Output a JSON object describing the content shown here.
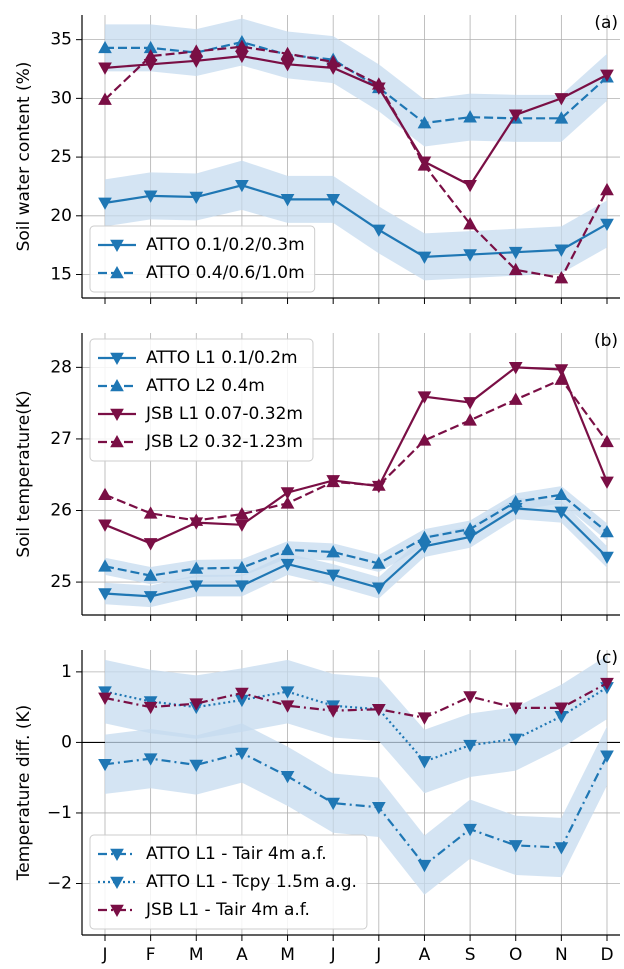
{
  "chart_data": [
    {
      "type": "line",
      "ylabel": "Soil water content (%)",
      "annotation": "(a)",
      "ylim": [
        13,
        37.1
      ],
      "yticks": [
        15,
        20,
        25,
        30,
        35
      ],
      "grid": true,
      "legend": "lower left",
      "band_color": "#c6dbef",
      "series": [
        {
          "name": "ATTO 0.1/0.2/0.3m",
          "color": "#1f77b4",
          "dash": "solid",
          "marker": "v",
          "values": [
            21.1,
            21.7,
            21.6,
            22.6,
            21.4,
            21.4,
            18.8,
            16.5,
            16.7,
            16.9,
            17.1,
            19.3
          ],
          "errors": [
            2,
            2,
            2,
            2.1,
            2,
            2,
            2,
            2,
            2,
            2,
            2,
            2
          ]
        },
        {
          "name": "ATTO 0.4/0.6/1.0m",
          "color": "#1f77b4",
          "dash": "dashed",
          "marker": "^",
          "values": [
            34.3,
            34.3,
            33.9,
            34.8,
            33.7,
            33.3,
            30.9,
            27.9,
            28.4,
            28.3,
            28.3,
            31.8
          ],
          "errors": [
            2,
            2,
            2,
            2,
            2,
            2,
            2,
            2,
            2,
            2,
            2,
            2
          ]
        },
        {
          "color": "#7a0f45",
          "dash": "solid",
          "marker": "v",
          "values": [
            32.6,
            32.9,
            33.2,
            33.6,
            32.9,
            32.6,
            30.9,
            24.6,
            22.6,
            28.6,
            30.0,
            32.0
          ]
        },
        {
          "color": "#7a0f45",
          "dash": "dashed",
          "marker": "^",
          "values": [
            29.9,
            33.6,
            34.0,
            34.4,
            33.8,
            33.1,
            31.2,
            24.3,
            19.3,
            15.4,
            14.7,
            22.2
          ]
        }
      ]
    },
    {
      "type": "line",
      "ylabel": "Soil temperature(K)",
      "annotation": "(b)",
      "ylim": [
        24.54,
        28.48
      ],
      "yticks": [
        25,
        26,
        27,
        28
      ],
      "grid": true,
      "legend": "upper left",
      "band_color": "#c6dbef",
      "series": [
        {
          "name": "ATTO L1 0.1/0.2m",
          "color": "#1f77b4",
          "dash": "solid",
          "marker": "v",
          "values": [
            24.84,
            24.8,
            24.95,
            24.95,
            25.25,
            25.1,
            24.92,
            25.5,
            25.63,
            26.03,
            25.98,
            25.35
          ],
          "errors": [
            0.15,
            0.15,
            0.15,
            0.15,
            0.15,
            0.15,
            0.15,
            0.15,
            0.15,
            0.15,
            0.15,
            0.15
          ]
        },
        {
          "name": "ATTO L2 0.4m",
          "color": "#1f77b4",
          "dash": "dashed",
          "marker": "^",
          "values": [
            25.22,
            25.09,
            25.19,
            25.2,
            25.45,
            25.42,
            25.26,
            25.62,
            25.74,
            26.12,
            26.22,
            25.7
          ],
          "errors": [
            0.12,
            0.12,
            0.12,
            0.12,
            0.12,
            0.12,
            0.12,
            0.12,
            0.12,
            0.12,
            0.12,
            0.12
          ]
        },
        {
          "name": "JSB L1 0.07-0.32m",
          "color": "#7a0f45",
          "dash": "solid",
          "marker": "v",
          "values": [
            25.8,
            25.54,
            25.83,
            25.8,
            26.25,
            26.42,
            26.34,
            27.59,
            27.51,
            28.0,
            27.97,
            26.4
          ]
        },
        {
          "name": "JSB L2 0.32-1.23m",
          "color": "#7a0f45",
          "dash": "dashed",
          "marker": "^",
          "values": [
            26.22,
            25.96,
            25.86,
            25.95,
            26.1,
            26.4,
            26.35,
            26.98,
            27.26,
            27.55,
            27.83,
            26.96
          ]
        }
      ]
    },
    {
      "type": "line",
      "ylabel": "Temperature diff. (K)",
      "annotation": "(c)",
      "categories": [
        "J",
        "F",
        "M",
        "A",
        "M",
        "J",
        "J",
        "A",
        "S",
        "O",
        "N",
        "D"
      ],
      "ylim": [
        -2.73,
        1.31
      ],
      "yticks": [
        {
          "value": -2,
          "label": "−2"
        },
        {
          "value": -1,
          "label": "−1"
        },
        0,
        1
      ],
      "grid": true,
      "zero_line": true,
      "legend": "lower left",
      "band_color": "#c6dbef",
      "series": [
        {
          "name": "ATTO L1 - Tair 4m a.f.",
          "color": "#1f77b4",
          "dash": "dashdot",
          "marker": "v",
          "values": [
            -0.31,
            -0.23,
            -0.32,
            -0.15,
            -0.48,
            -0.86,
            -0.92,
            -1.74,
            -1.23,
            -1.46,
            -1.49,
            -0.19
          ],
          "errors": [
            0.42,
            0.42,
            0.42,
            0.42,
            0.42,
            0.42,
            0.42,
            0.42,
            0.42,
            0.42,
            0.42,
            0.42
          ]
        },
        {
          "name": "ATTO L1 - Tcpy 1.5m a.g.",
          "color": "#1f77b4",
          "dash": "dotted",
          "marker": "v",
          "values": [
            0.72,
            0.58,
            0.5,
            0.6,
            0.72,
            0.52,
            0.47,
            -0.27,
            -0.04,
            0.05,
            0.37,
            0.78
          ],
          "errors": [
            0.45,
            0.45,
            0.45,
            0.45,
            0.45,
            0.45,
            0.45,
            0.45,
            0.45,
            0.45,
            0.45,
            0.45
          ]
        },
        {
          "name": "JSB L1 - Tair 4m a.f.",
          "color": "#7a0f45",
          "dash": "dashdot",
          "marker": "v",
          "values": [
            0.63,
            0.5,
            0.55,
            0.7,
            0.52,
            0.45,
            0.47,
            0.35,
            0.65,
            0.49,
            0.49,
            0.84
          ]
        }
      ]
    }
  ]
}
